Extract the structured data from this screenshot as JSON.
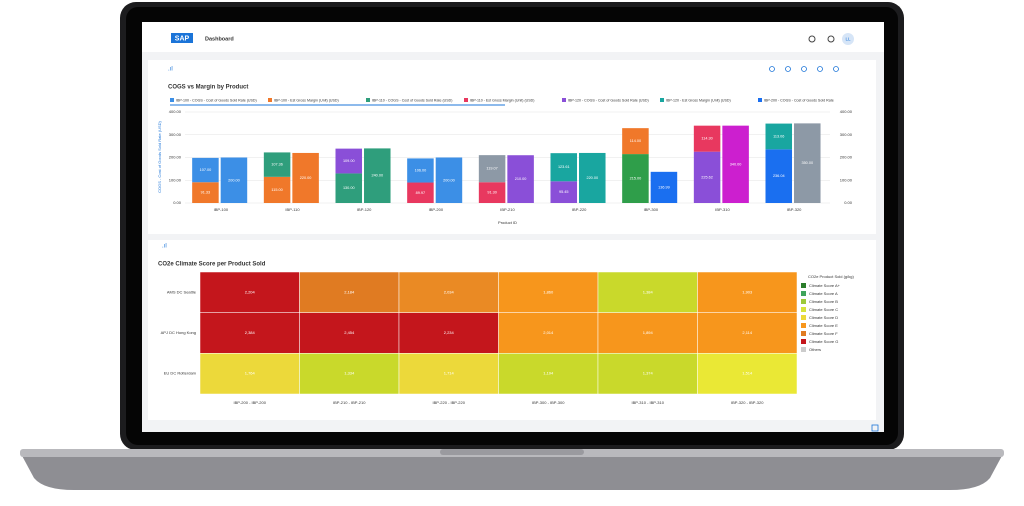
{
  "header": {
    "logo": "SAP",
    "title": "Dashboard",
    "user": "LL"
  },
  "bar_chart": {
    "type": "bar",
    "title": "COGS vs Margin by Product",
    "y_label": "COGS - Cost of Goods Sold Rate (USD)",
    "x_label": "Product ID",
    "legend": [
      {
        "label": "IBP-100 - COGS - Cost of Goods Sold Rate (USD)",
        "color": "#3c8fe6"
      },
      {
        "label": "IBP-100 - Est Gross Margin (Unit) (USD)",
        "color": "#f0782a"
      },
      {
        "label": "IBP-110 - COGS - Cost of Goods Sold Rate (USD)",
        "color": "#2f9e7c"
      },
      {
        "label": "IBP-110 - Est Gross Margin (Unit) (USD)",
        "color": "#e8385f"
      },
      {
        "label": "IBP-120 - COGS - Cost of Goods Sold Rate (USD)",
        "color": "#8a4fd8"
      },
      {
        "label": "IBP-120 - Est Gross Margin (Unit) (USD)",
        "color": "#19a6a0"
      },
      {
        "label": "IBP-200 - COGS - Cost of Goods Sold Rate",
        "color": "#1a6ff0"
      }
    ],
    "categories": [
      "IBP-100",
      "IBP-110",
      "IBP-120",
      "IBP-200",
      "IBP-210",
      "IBP-220",
      "IBP-300",
      "IBP-310",
      "IBP-320"
    ],
    "series": [
      {
        "stack": "a",
        "values": [
          91.33,
          115,
          130,
          89.97,
          91.3,
          95.45,
          215,
          225.62,
          236.04
        ],
        "value_labels": [
          "91.33",
          "115.00",
          "130.00",
          "89.97",
          "91.30",
          "95.45",
          "215.00",
          "225.62",
          "236.04"
        ],
        "colors": [
          "#f0782a",
          "#f0782a",
          "#2f9e7c",
          "#e8385f",
          "#e8385f",
          "#8a4fd8",
          "#2f9e4a",
          "#8a4fd8",
          "#1a6ff0"
        ]
      },
      {
        "stack": "a",
        "values": [
          107,
          107.36,
          109,
          106,
          119.07,
          123.61,
          114,
          114.3,
          113.06
        ],
        "value_labels": [
          "107.00",
          "107.36",
          "109.00",
          "106.00",
          "119.07",
          "123.61",
          "114.00",
          "114.30",
          "113.06"
        ],
        "colors": [
          "#3c8fe6",
          "#2f9e7c",
          "#8a4fd8",
          "#3c8fe6",
          "#8d99a6",
          "#19a6a0",
          "#f0782a",
          "#e8385f",
          "#19a6a0"
        ]
      },
      {
        "stack": "b",
        "values": [
          200,
          220,
          240,
          200,
          210,
          220,
          136.99,
          340,
          350
        ],
        "value_labels": [
          "200.00",
          "220.00",
          "240.00",
          "200.00",
          "210.00",
          "220.00",
          "136.99",
          "340.00",
          "350.00"
        ],
        "colors": [
          "#3c8fe6",
          "#f0782a",
          "#2f9e7c",
          "#3c8fe6",
          "#8a4fd8",
          "#19a6a0",
          "#1a6ff0",
          "#cc1fcf",
          "#8d99a6"
        ]
      }
    ],
    "ylim": [
      0,
      400
    ],
    "yticks": [
      {
        "value": 0,
        "label": "0.00"
      },
      {
        "value": 100,
        "label": "100.00"
      },
      {
        "value": 200,
        "label": "200.00"
      },
      {
        "value": 300,
        "label": "300.00"
      },
      {
        "value": 400,
        "label": "400.00"
      }
    ]
  },
  "heatmap": {
    "type": "heatmap",
    "title": "CO2e Climate Score per Product Sold",
    "rows": [
      "AMS DC Seattle",
      "APJ DC Hong Kong",
      "EU DC Rotterdam"
    ],
    "columns": [
      "IBP-200 - IBP-200",
      "IBP-210 - IBP-210",
      "IBP-220 - IBP-220",
      "IBP-300 - IBP-300",
      "IBP-310 - IBP-310",
      "IBP-320 - IBP-320"
    ],
    "values": [
      [
        2204,
        2184,
        2034,
        1860,
        1384,
        1903
      ],
      [
        2384,
        2454,
        2234,
        2014,
        1894,
        2114
      ],
      [
        1764,
        1334,
        1714,
        1194,
        1374,
        1514
      ]
    ],
    "value_labels": [
      [
        "2,204",
        "2,184",
        "2,034",
        "1,860",
        "1,384",
        "1,903"
      ],
      [
        "2,384",
        "2,454",
        "2,234",
        "2,014",
        "1,894",
        "2,114"
      ],
      [
        "1,764",
        "1,334",
        "1,714",
        "1,194",
        "1,374",
        "1,514"
      ]
    ],
    "colors": [
      [
        "#c4161c",
        "#e07b22",
        "#ea8a24",
        "#f7961c",
        "#c9d92b",
        "#f7961c"
      ],
      [
        "#c4161c",
        "#c4161c",
        "#c4161c",
        "#f7961c",
        "#f7961c",
        "#f7961c"
      ],
      [
        "#ecd93a",
        "#c9d92b",
        "#ecd93a",
        "#c9d92b",
        "#c9d92b",
        "#eae835"
      ]
    ],
    "legend_title": "CO2e Product Sold (g/kg)",
    "legend": [
      {
        "label": "Climate Score A+",
        "color": "#2b7d2b"
      },
      {
        "label": "Climate Score A",
        "color": "#3fa45b"
      },
      {
        "label": "Climate Score B",
        "color": "#9cc93a"
      },
      {
        "label": "Climate Score C",
        "color": "#d6e33c"
      },
      {
        "label": "Climate Score D",
        "color": "#ecd93a"
      },
      {
        "label": "Climate Score E",
        "color": "#f7961c"
      },
      {
        "label": "Climate Score F",
        "color": "#e07b22"
      },
      {
        "label": "Climate Score G",
        "color": "#c4161c"
      },
      {
        "label": "Others",
        "color": "#cccccc"
      }
    ]
  }
}
